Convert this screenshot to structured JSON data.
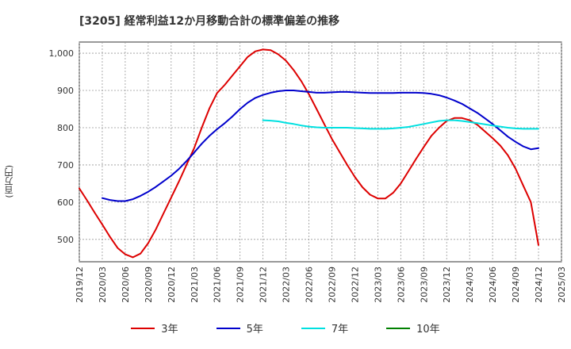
{
  "title": "[3205]  経常利益12か月移動合計の標準偏差の推移",
  "chart_data": {
    "type": "line",
    "title": "[3205]  経常利益12か月移動合計の標準偏差の推移",
    "ylabel": "(百万円)",
    "xlabel": "",
    "ylim": [
      440,
      1030
    ],
    "yticks": [
      500,
      600,
      700,
      800,
      900,
      1000
    ],
    "ytick_labels": [
      "500",
      "600",
      "700",
      "800",
      "900",
      "1,000"
    ],
    "xlim": [
      "2019-12",
      "2025-03"
    ],
    "xtick_labels": [
      "2019/12",
      "2020/03",
      "2020/06",
      "2020/09",
      "2020/12",
      "2021/03",
      "2021/06",
      "2021/09",
      "2021/12",
      "2022/03",
      "2022/06",
      "2022/09",
      "2022/12",
      "2023/03",
      "2023/06",
      "2023/09",
      "2023/12",
      "2024/03",
      "2024/06",
      "2024/09",
      "2024/12",
      "2025/03"
    ],
    "grid": true,
    "legend_position": "bottom",
    "series": [
      {
        "name": "3年",
        "color": "#dd0000",
        "x": [
          "2019-12",
          "2020-01",
          "2020-02",
          "2020-03",
          "2020-04",
          "2020-05",
          "2020-06",
          "2020-07",
          "2020-08",
          "2020-09",
          "2020-10",
          "2020-11",
          "2020-12",
          "2021-01",
          "2021-02",
          "2021-03",
          "2021-04",
          "2021-05",
          "2021-06",
          "2021-07",
          "2021-08",
          "2021-09",
          "2021-10",
          "2021-11",
          "2021-12",
          "2022-01",
          "2022-02",
          "2022-03",
          "2022-04",
          "2022-05",
          "2022-06",
          "2022-07",
          "2022-08",
          "2022-09",
          "2022-10",
          "2022-11",
          "2022-12",
          "2023-01",
          "2023-02",
          "2023-03",
          "2023-04",
          "2023-05",
          "2023-06",
          "2023-07",
          "2023-08",
          "2023-09",
          "2023-10",
          "2023-11",
          "2023-12",
          "2024-01",
          "2024-02",
          "2024-03",
          "2024-04",
          "2024-05",
          "2024-06",
          "2024-07",
          "2024-08",
          "2024-09",
          "2024-10",
          "2024-11",
          "2024-12"
        ],
        "values": [
          637,
          605,
          572,
          540,
          507,
          477,
          460,
          452,
          462,
          490,
          527,
          570,
          612,
          655,
          700,
          745,
          800,
          852,
          893,
          915,
          940,
          965,
          990,
          1005,
          1010,
          1008,
          997,
          980,
          955,
          925,
          890,
          850,
          810,
          770,
          735,
          700,
          668,
          640,
          620,
          610,
          610,
          625,
          650,
          683,
          716,
          748,
          778,
          800,
          818,
          826,
          826,
          820,
          808,
          790,
          772,
          752,
          726,
          690,
          645,
          600,
          485
        ]
      },
      {
        "name": "5年",
        "color": "#0000cc",
        "x": [
          "2020-03",
          "2020-04",
          "2020-05",
          "2020-06",
          "2020-07",
          "2020-08",
          "2020-09",
          "2020-10",
          "2020-11",
          "2020-12",
          "2021-01",
          "2021-02",
          "2021-03",
          "2021-04",
          "2021-05",
          "2021-06",
          "2021-07",
          "2021-08",
          "2021-09",
          "2021-10",
          "2021-11",
          "2021-12",
          "2022-01",
          "2022-02",
          "2022-03",
          "2022-04",
          "2022-05",
          "2022-06",
          "2022-07",
          "2022-08",
          "2022-09",
          "2022-10",
          "2022-11",
          "2022-12",
          "2023-01",
          "2023-02",
          "2023-03",
          "2023-04",
          "2023-05",
          "2023-06",
          "2023-07",
          "2023-08",
          "2023-09",
          "2023-10",
          "2023-11",
          "2023-12",
          "2024-01",
          "2024-02",
          "2024-03",
          "2024-04",
          "2024-05",
          "2024-06",
          "2024-07",
          "2024-08",
          "2024-09",
          "2024-10",
          "2024-11",
          "2024-12"
        ],
        "values": [
          611,
          606,
          603,
          603,
          608,
          617,
          628,
          641,
          656,
          671,
          689,
          710,
          733,
          757,
          778,
          796,
          812,
          830,
          850,
          867,
          880,
          888,
          894,
          898,
          900,
          900,
          898,
          896,
          894,
          894,
          895,
          896,
          896,
          895,
          894,
          893,
          893,
          893,
          893,
          894,
          894,
          894,
          893,
          891,
          887,
          881,
          873,
          864,
          852,
          840,
          825,
          810,
          793,
          776,
          762,
          750,
          742,
          745
        ]
      },
      {
        "name": "7年",
        "color": "#00e0e0",
        "x": [
          "2021-12",
          "2022-01",
          "2022-02",
          "2022-03",
          "2022-04",
          "2022-05",
          "2022-06",
          "2022-07",
          "2022-08",
          "2022-09",
          "2022-10",
          "2022-11",
          "2022-12",
          "2023-01",
          "2023-02",
          "2023-03",
          "2023-04",
          "2023-05",
          "2023-06",
          "2023-07",
          "2023-08",
          "2023-09",
          "2023-10",
          "2023-11",
          "2023-12",
          "2024-01",
          "2024-02",
          "2024-03",
          "2024-04",
          "2024-05",
          "2024-06",
          "2024-07",
          "2024-08",
          "2024-09",
          "2024-10",
          "2024-11",
          "2024-12"
        ],
        "values": [
          820,
          819,
          817,
          813,
          810,
          806,
          803,
          801,
          800,
          800,
          800,
          800,
          799,
          798,
          797,
          797,
          797,
          798,
          800,
          802,
          806,
          810,
          814,
          818,
          820,
          820,
          818,
          815,
          812,
          809,
          806,
          803,
          800,
          798,
          797,
          797,
          797
        ]
      },
      {
        "name": "10年",
        "color": "#008000",
        "x": [],
        "values": []
      }
    ]
  }
}
